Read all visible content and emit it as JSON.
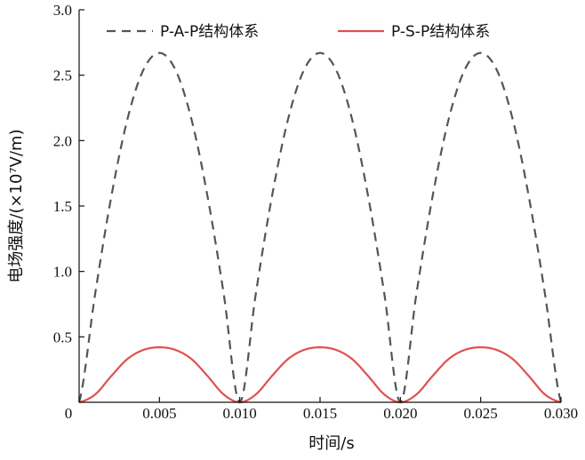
{
  "chart_data": {
    "type": "line",
    "xlabel": "时间/s",
    "ylabel": "电场强度/(×10⁷V/m)",
    "xlim": [
      0,
      0.03
    ],
    "ylim": [
      0,
      3.0
    ],
    "x_ticks": [
      0,
      0.005,
      0.01,
      0.015,
      0.02,
      0.025,
      0.03
    ],
    "x_tick_labels": [
      "0",
      "0.005",
      "0.010",
      "0.015",
      "0.020",
      "0.025",
      "0.030"
    ],
    "y_ticks": [
      0.5,
      1.0,
      1.5,
      2.0,
      2.5,
      3.0
    ],
    "y_tick_labels": [
      "0.5",
      "1.0",
      "1.5",
      "2.0",
      "2.5",
      "3.0"
    ],
    "grid": false,
    "legend_position": "top",
    "x": [
      0,
      0.001,
      0.002,
      0.003,
      0.004,
      0.005,
      0.006,
      0.007,
      0.008,
      0.009,
      0.01,
      0.011,
      0.012,
      0.013,
      0.014,
      0.015,
      0.016,
      0.017,
      0.018,
      0.019,
      0.02,
      0.021,
      0.022,
      0.023,
      0.024,
      0.025,
      0.026,
      0.027,
      0.028,
      0.029,
      0.03
    ],
    "series": [
      {
        "name": "P-A-P结构体系",
        "color": "#555555",
        "style": "dashed",
        "values": [
          0.0,
          0.83,
          1.57,
          2.16,
          2.54,
          2.67,
          2.54,
          2.16,
          1.57,
          0.83,
          0.0,
          0.83,
          1.57,
          2.16,
          2.54,
          2.67,
          2.54,
          2.16,
          1.57,
          0.83,
          0.0,
          0.83,
          1.57,
          2.16,
          2.54,
          2.67,
          2.54,
          2.16,
          1.57,
          0.83,
          0.0
        ]
      },
      {
        "name": "P-S-P结构体系",
        "color": "#e05050",
        "style": "solid",
        "values": [
          0.0,
          0.06,
          0.2,
          0.33,
          0.4,
          0.42,
          0.4,
          0.33,
          0.2,
          0.06,
          0.0,
          0.06,
          0.2,
          0.33,
          0.4,
          0.42,
          0.4,
          0.33,
          0.2,
          0.06,
          0.0,
          0.06,
          0.2,
          0.33,
          0.4,
          0.42,
          0.4,
          0.33,
          0.2,
          0.06,
          0.0
        ]
      }
    ]
  }
}
